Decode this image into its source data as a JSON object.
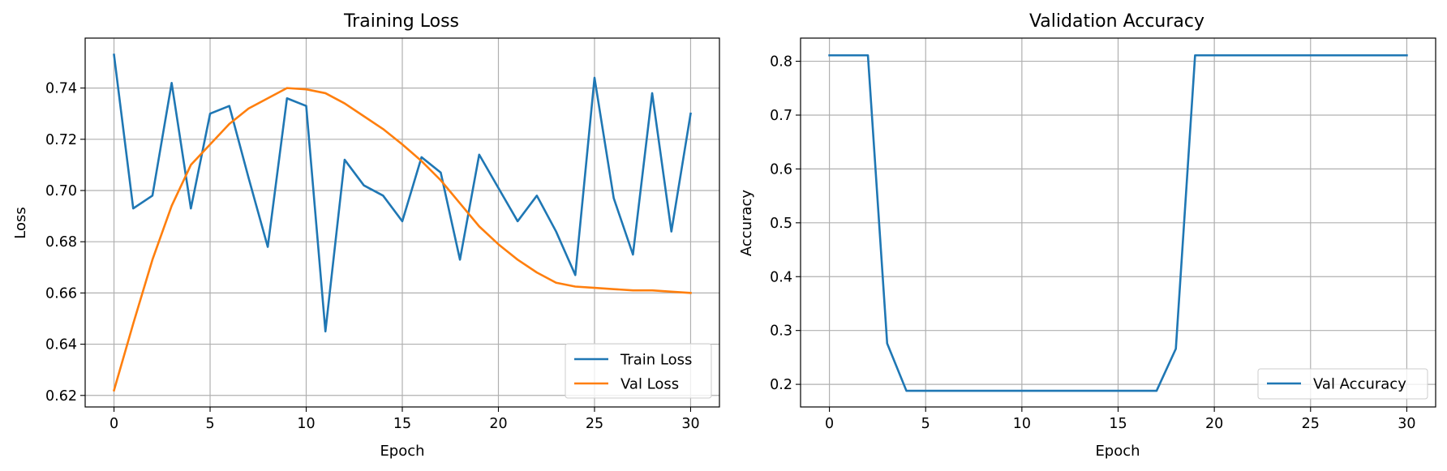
{
  "chart_data": [
    {
      "type": "line",
      "title": "Training Loss",
      "xlabel": "Epoch",
      "ylabel": "Loss",
      "xlim": [
        -1.5,
        31.5
      ],
      "ylim": [
        0.6155,
        0.7595
      ],
      "xticks": [
        0,
        5,
        10,
        15,
        20,
        25,
        30
      ],
      "yticks": [
        0.62,
        0.64,
        0.66,
        0.68,
        0.7,
        0.72,
        0.74
      ],
      "ytick_labels": [
        "0.62",
        "0.64",
        "0.66",
        "0.68",
        "0.70",
        "0.72",
        "0.74"
      ],
      "grid": true,
      "legend_position": "lower right",
      "x": [
        0,
        1,
        2,
        3,
        4,
        5,
        6,
        7,
        8,
        9,
        10,
        11,
        12,
        13,
        14,
        15,
        16,
        17,
        18,
        19,
        20,
        21,
        22,
        23,
        24,
        25,
        26,
        27,
        28,
        29,
        30
      ],
      "series": [
        {
          "name": "Train Loss",
          "color": "#1f77b4",
          "values": [
            0.753,
            0.693,
            0.698,
            0.742,
            0.693,
            0.73,
            0.733,
            0.705,
            0.678,
            0.736,
            0.733,
            0.645,
            0.712,
            0.702,
            0.698,
            0.688,
            0.713,
            0.707,
            0.673,
            0.714,
            0.701,
            0.688,
            0.698,
            0.684,
            0.667,
            0.744,
            0.697,
            0.675,
            0.738,
            0.684,
            0.73
          ]
        },
        {
          "name": "Val Loss",
          "color": "#ff7f0e",
          "values": [
            0.622,
            0.648,
            0.673,
            0.694,
            0.71,
            0.718,
            0.726,
            0.732,
            0.736,
            0.74,
            0.7395,
            0.738,
            0.734,
            0.729,
            0.724,
            0.718,
            0.7115,
            0.704,
            0.695,
            0.686,
            0.679,
            0.673,
            0.668,
            0.664,
            0.6625,
            0.662,
            0.6615,
            0.661,
            0.661,
            0.6605,
            0.66
          ]
        }
      ]
    },
    {
      "type": "line",
      "title": "Validation Accuracy",
      "xlabel": "Epoch",
      "ylabel": "Accuracy",
      "xlim": [
        -1.5,
        31.5
      ],
      "ylim": [
        0.158,
        0.843
      ],
      "xticks": [
        0,
        5,
        10,
        15,
        20,
        25,
        30
      ],
      "yticks": [
        0.2,
        0.3,
        0.4,
        0.5,
        0.6,
        0.7,
        0.8
      ],
      "ytick_labels": [
        "0.2",
        "0.3",
        "0.4",
        "0.5",
        "0.6",
        "0.7",
        "0.8"
      ],
      "grid": true,
      "legend_position": "lower right",
      "x": [
        0,
        1,
        2,
        3,
        4,
        5,
        6,
        7,
        8,
        9,
        10,
        11,
        12,
        13,
        14,
        15,
        16,
        17,
        18,
        19,
        20,
        21,
        22,
        23,
        24,
        25,
        26,
        27,
        28,
        29,
        30
      ],
      "series": [
        {
          "name": "Val Accuracy",
          "color": "#1f77b4",
          "values": [
            0.811,
            0.811,
            0.811,
            0.276,
            0.188,
            0.188,
            0.188,
            0.188,
            0.188,
            0.188,
            0.188,
            0.188,
            0.188,
            0.188,
            0.188,
            0.188,
            0.188,
            0.188,
            0.266,
            0.811,
            0.811,
            0.811,
            0.811,
            0.811,
            0.811,
            0.811,
            0.811,
            0.811,
            0.811,
            0.811,
            0.811
          ]
        }
      ]
    }
  ]
}
